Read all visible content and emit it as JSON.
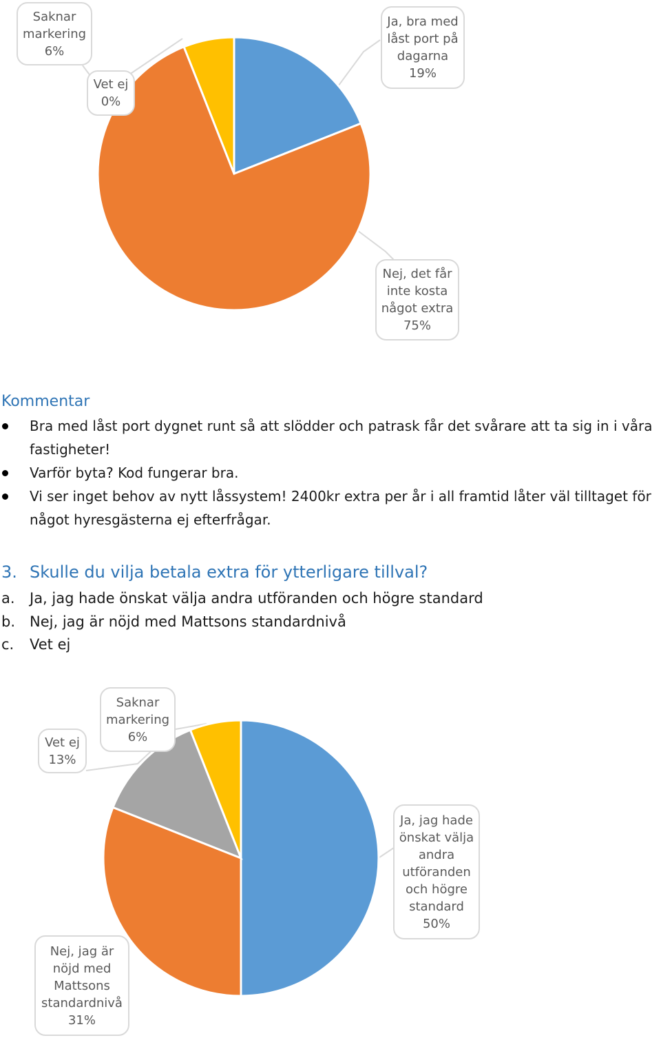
{
  "chart_data": [
    {
      "type": "pie",
      "slices": [
        {
          "label": "Ja, bra med låst port på dagarna",
          "value": 19,
          "label_text": "19%",
          "color": "#5b9bd5"
        },
        {
          "label": "Nej, det får inte kosta något extra",
          "value": 75,
          "label_text": "75%",
          "color": "#ed7d31"
        },
        {
          "label": "Vet ej",
          "value": 0,
          "label_text": "0%",
          "color": "#a5a5a5"
        },
        {
          "label": "Saknar markering",
          "value": 6,
          "label_text": "6%",
          "color": "#ffc000"
        }
      ]
    },
    {
      "type": "pie",
      "slices": [
        {
          "label": "Ja, jag hade önskat välja andra utföranden och högre standard",
          "value": 50,
          "label_text": "50%",
          "color": "#5b9bd5"
        },
        {
          "label": "Nej, jag är nöjd med Mattsons standardnivå",
          "value": 31,
          "label_text": "31%",
          "color": "#ed7d31"
        },
        {
          "label": "Vet ej",
          "value": 13,
          "label_text": "13%",
          "color": "#a5a5a5"
        },
        {
          "label": "Saknar markering",
          "value": 6,
          "label_text": "6%",
          "color": "#ffc000"
        }
      ]
    }
  ],
  "chart1_labels": {
    "saknar": [
      "Saknar",
      "markering",
      "6%"
    ],
    "vetej": [
      "Vet ej",
      "0%"
    ],
    "ja": [
      "Ja, bra med",
      "låst port på",
      "dagarna",
      "19%"
    ],
    "nej": [
      "Nej, det får",
      "inte kosta",
      "något extra",
      "75%"
    ]
  },
  "chart2_labels": {
    "vetej": [
      "Vet ej",
      "13%"
    ],
    "saknar": [
      "Saknar",
      "markering",
      "6%"
    ],
    "ja": [
      "Ja, jag hade",
      "önskat välja",
      "andra",
      "utföranden",
      "och högre",
      "standard",
      "50%"
    ],
    "nej": [
      "Nej, jag är",
      "nöjd med",
      "Mattsons",
      "standardnivå",
      "31%"
    ]
  },
  "comment": {
    "title": "Kommentar",
    "bullets": [
      "Bra med låst port dygnet runt så att slödder och patrask får det svårare att ta sig in i våra fastigheter!",
      "Varför byta? Kod fungerar bra.",
      "Vi ser inget behov av nytt låssystem! 2400kr extra per år i all framtid låter väl tilltaget för något hyresgästerna ej efterfrågar."
    ]
  },
  "question": {
    "number": "3.",
    "text": "Skulle du vilja betala extra för ytterligare tillval?",
    "options": [
      {
        "letter": "a.",
        "text": "Ja, jag hade önskat välja andra utföranden och högre standard"
      },
      {
        "letter": "b.",
        "text": "Nej, jag är nöjd med Mattsons standardnivå"
      },
      {
        "letter": "c.",
        "text": "Vet ej"
      }
    ]
  }
}
